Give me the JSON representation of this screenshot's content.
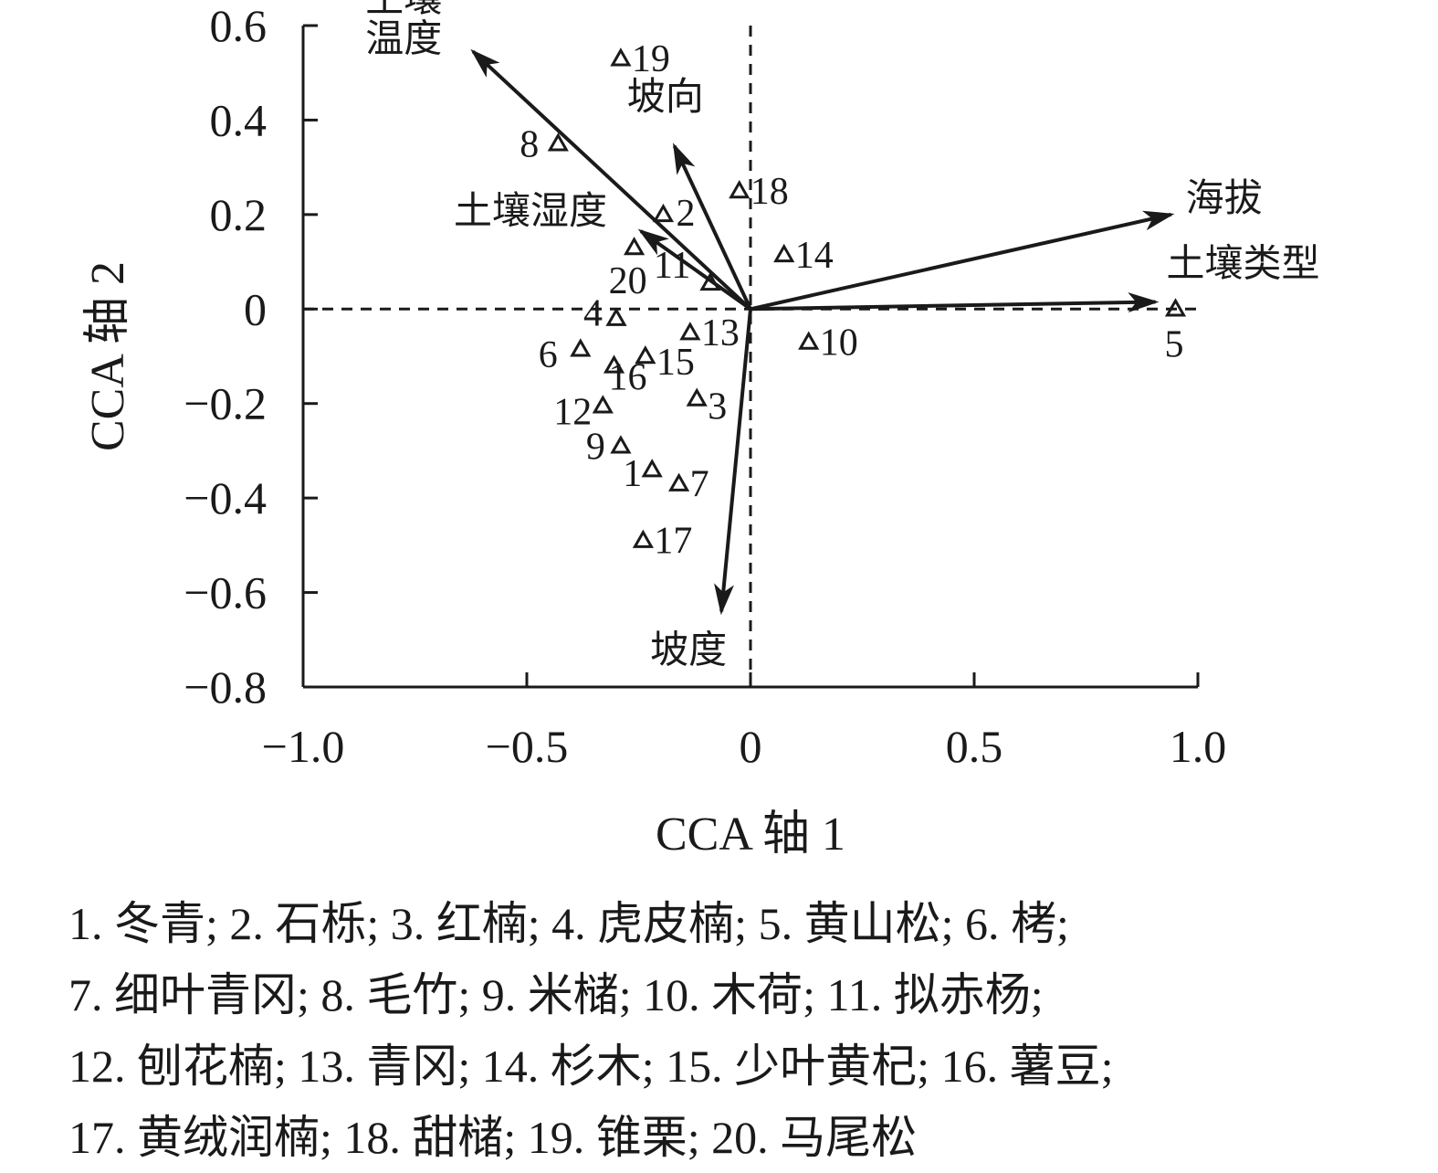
{
  "chart_data": {
    "type": "scatter",
    "xlabel": "CCA 轴 1",
    "ylabel": "CCA 轴 2",
    "xlim": [
      -1.0,
      1.0
    ],
    "ylim": [
      -0.8,
      0.6
    ],
    "xticks": [
      {
        "value": -1.0,
        "label": "−1.0"
      },
      {
        "value": -0.5,
        "label": "−0.5"
      },
      {
        "value": 0,
        "label": "0"
      },
      {
        "value": 0.5,
        "label": "0.5"
      },
      {
        "value": 1.0,
        "label": "1.0"
      }
    ],
    "yticks": [
      {
        "value": 0.6,
        "label": "0.6"
      },
      {
        "value": 0.4,
        "label": "0.4"
      },
      {
        "value": 0.2,
        "label": "0.2"
      },
      {
        "value": 0,
        "label": "0"
      },
      {
        "value": -0.2,
        "label": "−0.2"
      },
      {
        "value": -0.4,
        "label": "−0.4"
      },
      {
        "value": -0.6,
        "label": "−0.6"
      },
      {
        "value": -0.8,
        "label": "−0.8"
      }
    ],
    "reference_lines": {
      "x": 0,
      "y": 0,
      "style": "dashed"
    },
    "points": [
      {
        "id": "1",
        "x": -0.22,
        "y": -0.34
      },
      {
        "id": "2",
        "x": -0.195,
        "y": 0.2
      },
      {
        "id": "3",
        "x": -0.12,
        "y": -0.19
      },
      {
        "id": "4",
        "x": -0.3,
        "y": -0.02
      },
      {
        "id": "5",
        "x": 0.95,
        "y": 0.0
      },
      {
        "id": "6",
        "x": -0.38,
        "y": -0.085
      },
      {
        "id": "7",
        "x": -0.16,
        "y": -0.37
      },
      {
        "id": "8",
        "x": -0.43,
        "y": 0.35
      },
      {
        "id": "9",
        "x": -0.29,
        "y": -0.29
      },
      {
        "id": "10",
        "x": 0.13,
        "y": -0.07
      },
      {
        "id": "11",
        "x": -0.09,
        "y": 0.055
      },
      {
        "id": "12",
        "x": -0.33,
        "y": -0.205
      },
      {
        "id": "13",
        "x": -0.135,
        "y": -0.05
      },
      {
        "id": "14",
        "x": 0.075,
        "y": 0.115
      },
      {
        "id": "15",
        "x": -0.235,
        "y": -0.1
      },
      {
        "id": "16",
        "x": -0.305,
        "y": -0.12
      },
      {
        "id": "17",
        "x": -0.24,
        "y": -0.49
      },
      {
        "id": "18",
        "x": -0.025,
        "y": 0.25
      },
      {
        "id": "19",
        "x": -0.29,
        "y": 0.53
      },
      {
        "id": "20",
        "x": -0.26,
        "y": 0.13
      }
    ],
    "vectors": [
      {
        "label": "土壤温度",
        "lines": [
          "土壤",
          "温度"
        ],
        "x": -0.62,
        "y": 0.545
      },
      {
        "label": "坡向",
        "lines": [
          "坡向"
        ],
        "x": -0.17,
        "y": 0.345
      },
      {
        "label": "土壤湿度",
        "lines": [
          "土壤湿度"
        ],
        "x": -0.245,
        "y": 0.165
      },
      {
        "label": "海拔",
        "lines": [
          "海拔"
        ],
        "x": 0.94,
        "y": 0.2
      },
      {
        "label": "土壤类型",
        "lines": [
          "土壤类型"
        ],
        "x": 0.905,
        "y": 0.015
      },
      {
        "label": "坡度",
        "lines": [
          "坡度"
        ],
        "x": -0.065,
        "y": -0.64
      }
    ]
  },
  "legend": {
    "lines": [
      "1. 冬青; 2. 石栎; 3. 红楠; 4. 虎皮楠; 5. 黄山松; 6. 栲;",
      "7. 细叶青冈; 8. 毛竹; 9. 米槠; 10. 木荷; 11. 拟赤杨;",
      "12. 刨花楠; 13. 青冈; 14. 杉木; 15. 少叶黄杞; 16. 薯豆;",
      "17. 黄绒润楠; 18. 甜槠; 19. 锥栗; 20. 马尾松"
    ]
  }
}
